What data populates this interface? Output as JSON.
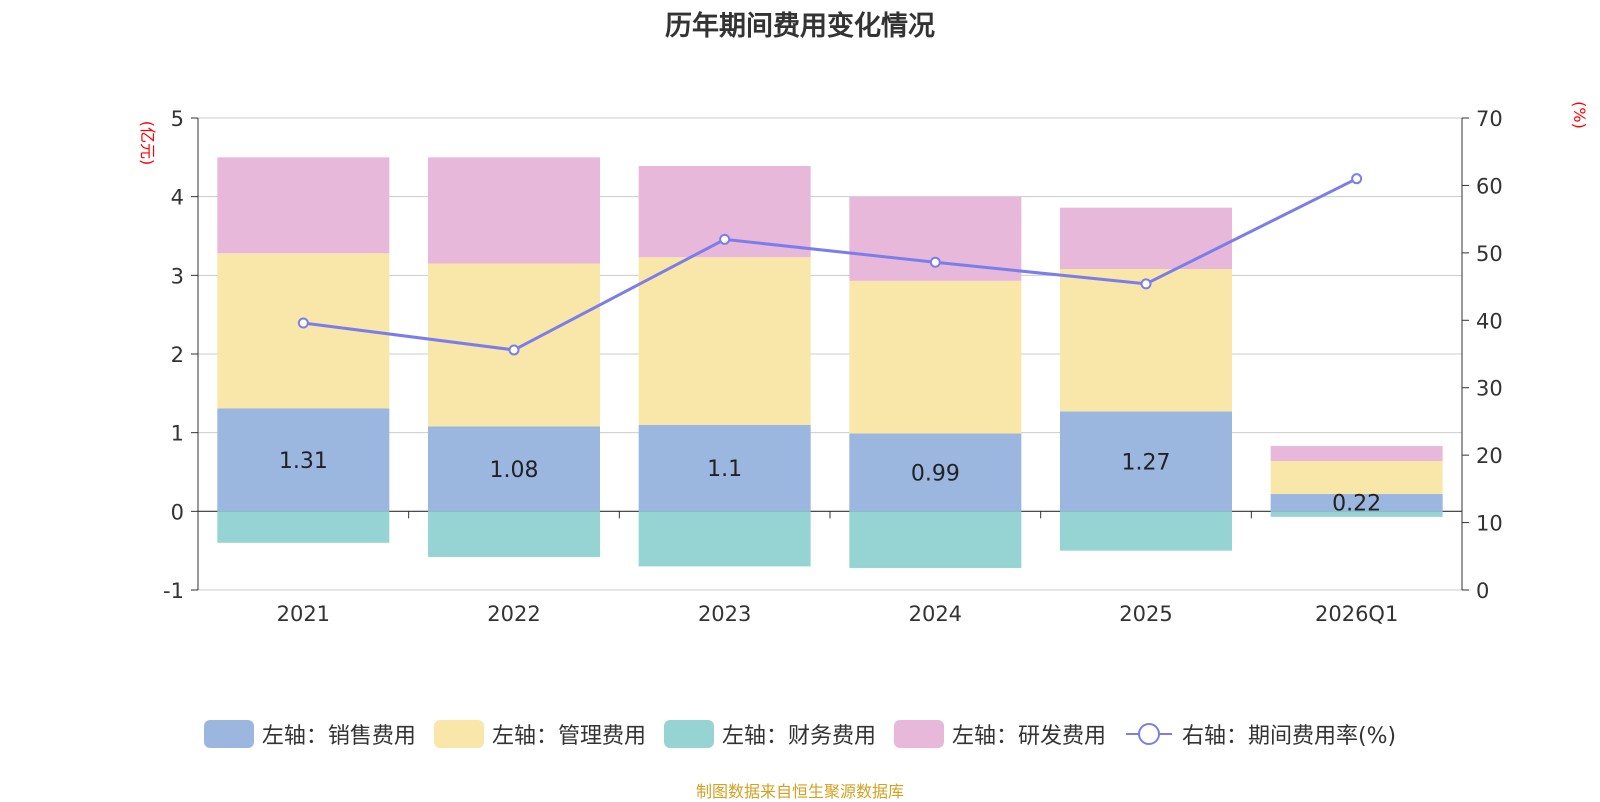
{
  "chart_data": {
    "type": "bar",
    "stacked": true,
    "title": "历年期间费用变化情况",
    "categories": [
      "2021",
      "2022",
      "2023",
      "2024",
      "2025",
      "2026Q1"
    ],
    "left_axis": {
      "unit": "(亿元)",
      "ylim": [
        -1,
        5
      ],
      "ticks": [
        "-1",
        "0",
        "1",
        "2",
        "3",
        "4",
        "5"
      ]
    },
    "right_axis": {
      "unit": "(%)",
      "ylim": [
        0,
        70
      ],
      "ticks": [
        "0",
        "10",
        "20",
        "30",
        "40",
        "50",
        "60",
        "70"
      ]
    },
    "series": [
      {
        "name": "左轴：销售费用",
        "color": "#9bb7e0",
        "values": [
          1.31,
          1.08,
          1.1,
          0.99,
          1.27,
          0.22
        ],
        "labels": [
          "1.31",
          "1.08",
          "1.1",
          "0.99",
          "1.27",
          "0.22"
        ]
      },
      {
        "name": "左轴：管理费用",
        "color": "#f8e7a8",
        "values": [
          1.97,
          2.07,
          2.13,
          1.94,
          1.81,
          0.42
        ]
      },
      {
        "name": "左轴：财务费用",
        "color": "#96d4d4",
        "values": [
          -0.4,
          -0.58,
          -0.7,
          -0.72,
          -0.5,
          -0.07
        ]
      },
      {
        "name": "左轴：研发费用",
        "color": "#e7b8d9",
        "values": [
          1.22,
          1.35,
          1.16,
          1.07,
          0.78,
          0.19
        ]
      }
    ],
    "line": {
      "name": "右轴：期间费用率(%)",
      "color": "#7b7eea",
      "values": [
        39.6,
        35.6,
        52.0,
        48.6,
        45.4,
        61.0
      ]
    },
    "legend_position": "bottom",
    "grid": true
  },
  "source_note": "制图数据来自恒生聚源数据库"
}
